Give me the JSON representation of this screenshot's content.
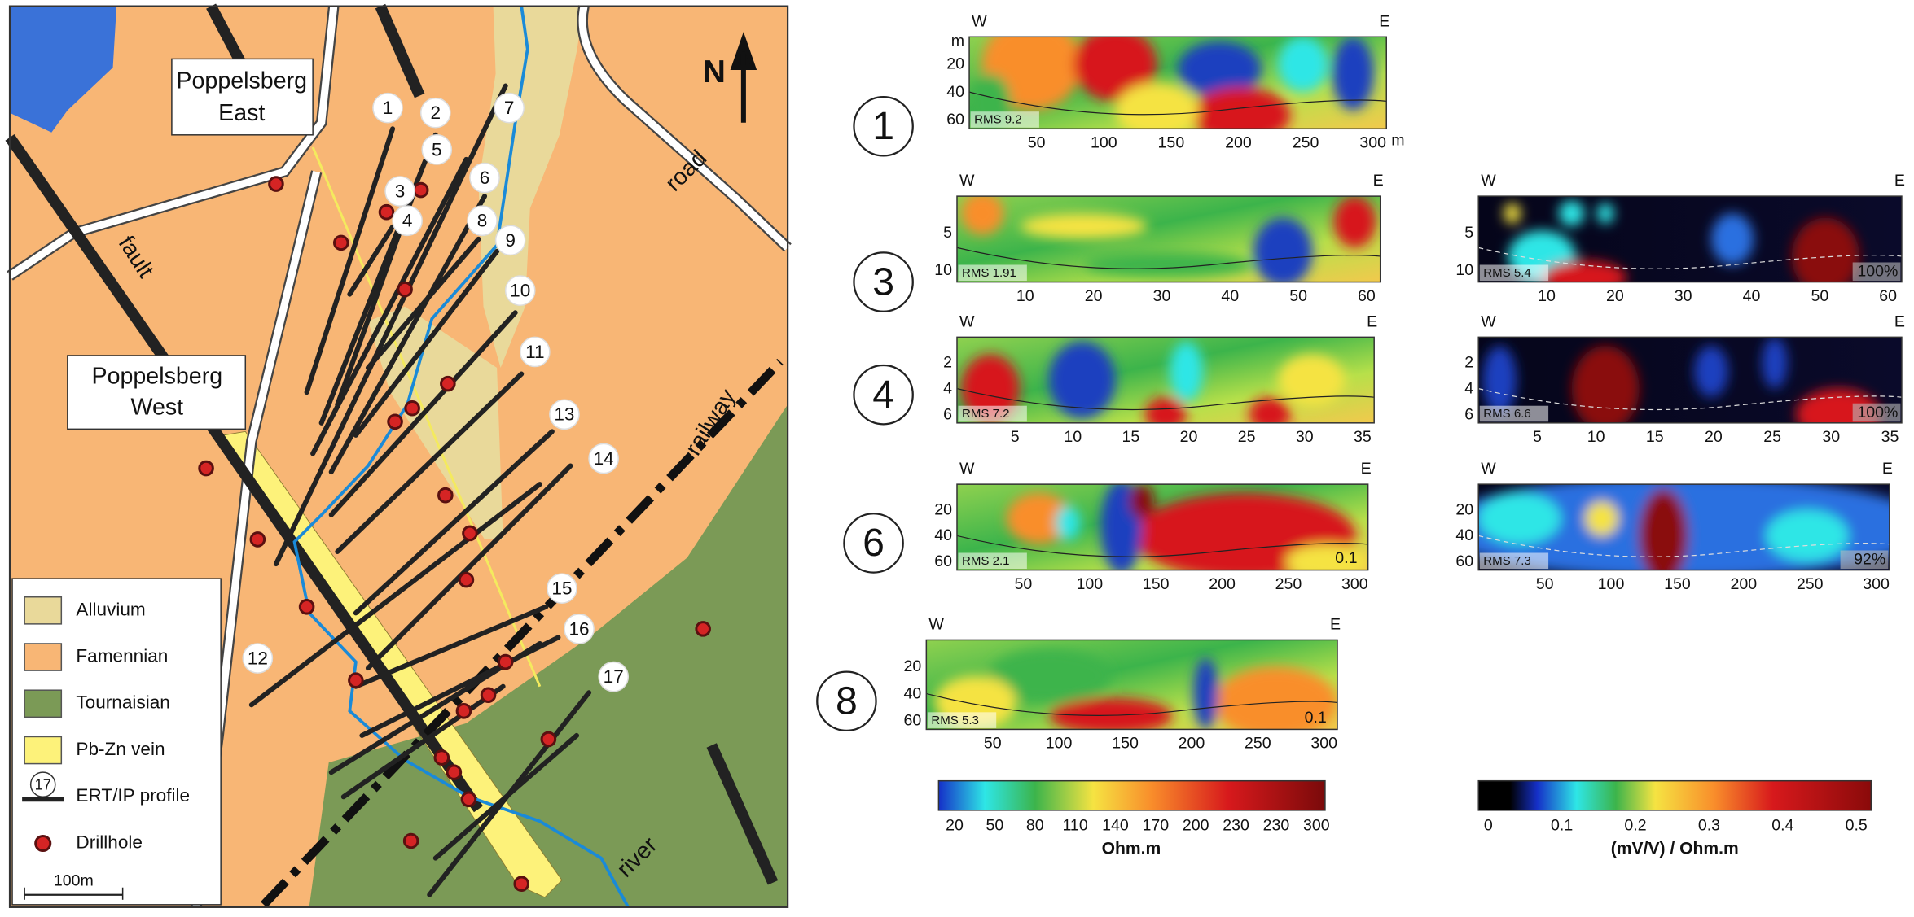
{
  "map": {
    "poppelsberg_east": [
      "Poppelsberg",
      "East"
    ],
    "poppelsberg_west": [
      "Poppelsberg",
      "West"
    ],
    "fault": "fault",
    "road": "road",
    "railway": "railway",
    "river": "river",
    "north": "N",
    "scale": "100m",
    "profiles": [
      "1",
      "2",
      "3",
      "4",
      "5",
      "6",
      "7",
      "8",
      "9",
      "10",
      "11",
      "12",
      "13",
      "14",
      "15",
      "16",
      "17"
    ],
    "legend": {
      "items": [
        "Alluvium",
        "Famennian",
        "Tournaisian",
        "Pb-Zn vein",
        "ERT/IP profile",
        "Drillhole"
      ],
      "profile_number": "17"
    }
  },
  "sections": [
    {
      "label": "1",
      "west": "W",
      "east": "E",
      "y_unit": "m",
      "x_unit": "m",
      "yticks": [
        "20",
        "40",
        "60"
      ],
      "xticks": [
        "50",
        "100",
        "150",
        "200",
        "250",
        "300"
      ],
      "rms": "RMS 9.2"
    },
    {
      "label": "3",
      "west": "W",
      "east": "E",
      "yticks": [
        "5",
        "10"
      ],
      "xticks": [
        "10",
        "20",
        "30",
        "40",
        "50",
        "60"
      ],
      "rms": "RMS 1.91"
    },
    {
      "label": "4",
      "west": "W",
      "east": "E",
      "yticks": [
        "2",
        "4",
        "6"
      ],
      "xticks": [
        "5",
        "10",
        "15",
        "20",
        "25",
        "30",
        "35"
      ],
      "rms": "RMS 7.2"
    },
    {
      "label": "6",
      "west": "W",
      "east": "E",
      "yticks": [
        "20",
        "40",
        "60"
      ],
      "xticks": [
        "50",
        "100",
        "150",
        "200",
        "250",
        "300"
      ],
      "rms": "RMS 2.1",
      "contour": "0.1"
    },
    {
      "label": "8",
      "west": "W",
      "east": "E",
      "yticks": [
        "20",
        "40",
        "60"
      ],
      "xticks": [
        "50",
        "100",
        "150",
        "200",
        "250",
        "300"
      ],
      "rms": "RMS 5.3",
      "contour": "0.1"
    }
  ],
  "ip_sections": [
    {
      "west": "W",
      "east": "E",
      "yticks": [
        "5",
        "10"
      ],
      "xticks": [
        "10",
        "20",
        "30",
        "40",
        "50",
        "60"
      ],
      "rms": "RMS 5.4",
      "coverage": "100%"
    },
    {
      "west": "W",
      "east": "E",
      "yticks": [
        "2",
        "4",
        "6"
      ],
      "xticks": [
        "5",
        "10",
        "15",
        "20",
        "25",
        "30",
        "35"
      ],
      "rms": "RMS 6.6",
      "coverage": "100%"
    },
    {
      "west": "W",
      "east": "E",
      "yticks": [
        "20",
        "40",
        "60"
      ],
      "xticks": [
        "50",
        "100",
        "150",
        "200",
        "250",
        "300"
      ],
      "rms": "RMS 7.3",
      "coverage": "92%"
    }
  ],
  "colorbars": {
    "resistivity": {
      "ticks": [
        "20",
        "50",
        "80",
        "110",
        "140",
        "170",
        "200",
        "230",
        "230",
        "300"
      ],
      "unit": "Ohm.m"
    },
    "chargeability": {
      "ticks": [
        "0",
        "0.1",
        "0.2",
        "0.3",
        "0.4",
        "0.5"
      ],
      "unit": "(mV/V) / Ohm.m"
    }
  }
}
